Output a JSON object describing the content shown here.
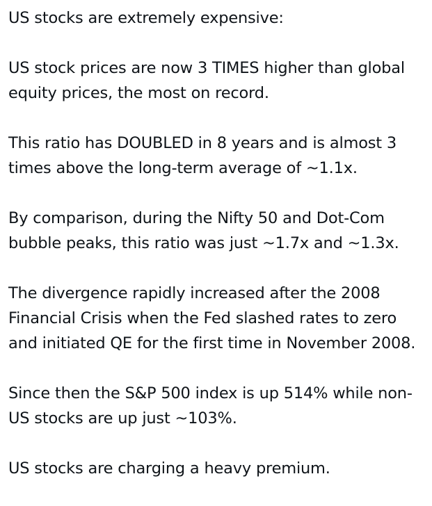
{
  "post": {
    "paragraphs": [
      "US stocks are extremely expensive:",
      "US stock prices are now 3 TIMES higher than global equity prices, the most on record.",
      "This ratio has DOUBLED in 8 years and is almost 3 times above the long-term average of ~1.1x.",
      "By comparison, during the Nifty 50 and Dot-Com bubble peaks, this ratio was just ~1.7x and ~1.3x.",
      "The divergence rapidly increased after the 2008 Financial Crisis when the Fed slashed rates to zero and initiated QE for the first time in November 2008.",
      "Since then the S&P 500 index is up 514% while non-US stocks are up just ~103%.",
      "US stocks are charging a heavy premium."
    ]
  },
  "colors": {
    "text": "#0f1419",
    "background": "#ffffff"
  }
}
